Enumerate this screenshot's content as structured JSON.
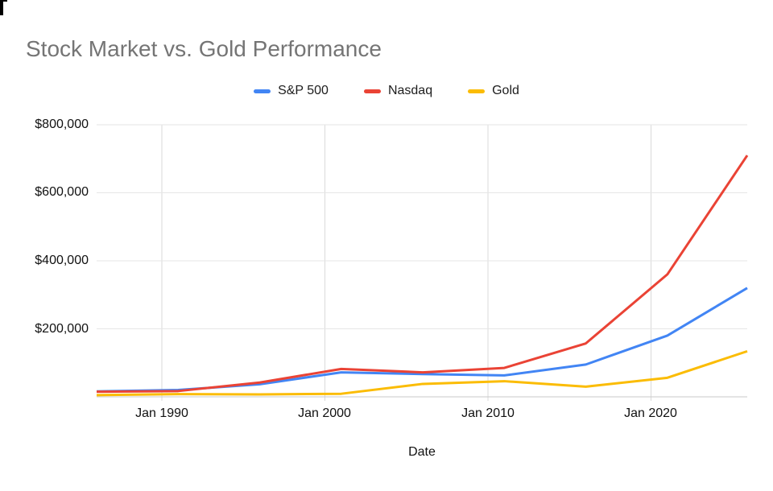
{
  "chart_data": {
    "type": "line",
    "title": "Stock Market vs. Gold Performance",
    "title_color": "#757575",
    "xlabel": "Date",
    "legend_position": "top",
    "grid": true,
    "gridline_color": "#e6e6e6",
    "vertical_gridline_color": "#dadada",
    "baseline_color": "#c9c9c9",
    "tick_text_color": "#111111",
    "x_axis": {
      "min": 1986,
      "max": 2025.9
    },
    "y_axis": {
      "min": 0,
      "max": 800000
    },
    "x_ticks": [
      {
        "year": 1990,
        "label": "Jan 1990"
      },
      {
        "year": 2000,
        "label": "Jan 2000"
      },
      {
        "year": 2010,
        "label": "Jan 2010"
      },
      {
        "year": 2020,
        "label": "Jan 2020"
      }
    ],
    "y_ticks": [
      {
        "value": 800000,
        "label": "$800,000"
      },
      {
        "value": 600000,
        "label": "$600,000"
      },
      {
        "value": 400000,
        "label": "$400,000"
      },
      {
        "value": 200000,
        "label": "$200,000"
      }
    ],
    "x": [
      1986,
      1991,
      1996,
      2001,
      2006,
      2011,
      2016,
      2021,
      2025.9
    ],
    "series": [
      {
        "name": "S&P 500",
        "color": "#4285F4",
        "values": [
          16000,
          20000,
          37000,
          72000,
          67000,
          63000,
          95000,
          180000,
          320000
        ]
      },
      {
        "name": "Nasdaq",
        "color": "#EA4335",
        "values": [
          15000,
          17000,
          42000,
          82000,
          72000,
          85000,
          157000,
          360000,
          710000
        ]
      },
      {
        "name": "Gold",
        "color": "#FBBC04",
        "values": [
          5000,
          8000,
          7000,
          9000,
          38000,
          46000,
          30000,
          56000,
          134000
        ]
      }
    ]
  }
}
